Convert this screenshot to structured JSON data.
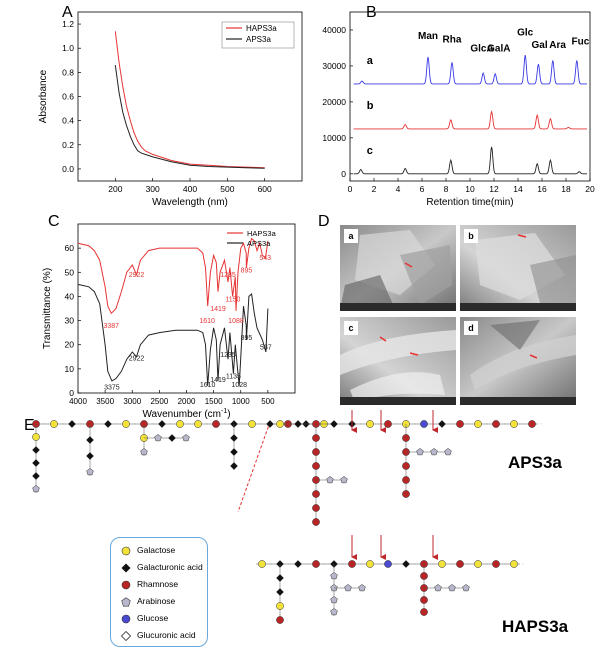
{
  "figure": {
    "panel_labels": [
      "A",
      "B",
      "C",
      "D",
      "E"
    ]
  },
  "chart_data": [
    {
      "id": "A",
      "type": "line",
      "xlabel": "Wavelength (nm)",
      "ylabel": "Absorbance",
      "xlim": [
        100,
        700
      ],
      "ylim": [
        -0.1,
        1.3
      ],
      "xticks": [
        "200",
        "300",
        "400",
        "500",
        "600"
      ],
      "yticks": [
        "0.0",
        "0.2",
        "0.4",
        "0.6",
        "0.8",
        "1.0",
        "1.2"
      ],
      "legend": [
        "HAPS3a",
        "APS3a"
      ],
      "series": [
        {
          "name": "HAPS3a",
          "color": "#e63333",
          "x": [
            200,
            210,
            220,
            230,
            240,
            250,
            260,
            270,
            280,
            300,
            350,
            400,
            450,
            500,
            550,
            600
          ],
          "y": [
            1.14,
            0.88,
            0.68,
            0.52,
            0.4,
            0.3,
            0.23,
            0.18,
            0.15,
            0.12,
            0.07,
            0.04,
            0.03,
            0.02,
            0.015,
            0.01
          ]
        },
        {
          "name": "APS3a",
          "color": "#222222",
          "x": [
            200,
            210,
            220,
            230,
            240,
            250,
            260,
            270,
            280,
            300,
            350,
            400,
            450,
            500,
            550,
            600
          ],
          "y": [
            0.86,
            0.63,
            0.47,
            0.36,
            0.27,
            0.2,
            0.15,
            0.13,
            0.12,
            0.1,
            0.06,
            0.03,
            0.02,
            0.015,
            0.01,
            0.005
          ]
        }
      ]
    },
    {
      "id": "B",
      "type": "line",
      "xlabel": "Retention time(min)",
      "xlim": [
        0,
        20
      ],
      "ylim": [
        -2000,
        45000
      ],
      "xticks": [
        "0",
        "2",
        "4",
        "6",
        "8",
        "10",
        "12",
        "14",
        "16",
        "18",
        "20"
      ],
      "yticks": [
        "0",
        "10000",
        "20000",
        "30000",
        "40000"
      ],
      "trace_labels": [
        "a",
        "b",
        "c"
      ],
      "peak_labels": [
        {
          "text": "Man",
          "x": 6.5,
          "y": 37500
        },
        {
          "text": "Rha",
          "x": 8.5,
          "y": 36500
        },
        {
          "text": "GlcA",
          "x": 11,
          "y": 34000
        },
        {
          "text": "GalA",
          "x": 12.4,
          "y": 34000
        },
        {
          "text": "Glc",
          "x": 14.6,
          "y": 38500
        },
        {
          "text": "Gal",
          "x": 15.8,
          "y": 35000
        },
        {
          "text": "Ara",
          "x": 17.3,
          "y": 35000
        },
        {
          "text": "Fuc",
          "x": 19.2,
          "y": 36000
        }
      ],
      "series": [
        {
          "name": "a",
          "color": "#3a3ae6",
          "baseline": 25000,
          "peaks": [
            [
              1,
              800
            ],
            [
              6.5,
              7500
            ],
            [
              8.5,
              6000
            ],
            [
              11.1,
              3000
            ],
            [
              12.1,
              2800
            ],
            [
              14.6,
              8000
            ],
            [
              15.7,
              5500
            ],
            [
              16.9,
              6500
            ],
            [
              18.9,
              6500
            ]
          ]
        },
        {
          "name": "b",
          "color": "#e63333",
          "baseline": 12500,
          "peaks": [
            [
              4.6,
              1200
            ],
            [
              8.4,
              2500
            ],
            [
              11.8,
              4800
            ],
            [
              15.6,
              3800
            ],
            [
              16.7,
              2800
            ],
            [
              18.2,
              400
            ]
          ]
        },
        {
          "name": "c",
          "color": "#222222",
          "baseline": 0,
          "peaks": [
            [
              0.9,
              1200
            ],
            [
              4.6,
              1500
            ],
            [
              8.4,
              3800
            ],
            [
              11.8,
              7500
            ],
            [
              15.6,
              2800
            ],
            [
              16.7,
              3800
            ],
            [
              19.1,
              600
            ]
          ]
        }
      ]
    },
    {
      "id": "C",
      "type": "line",
      "xlabel": "Wavenumber (cm",
      "xlabel_sup": "-1",
      "xlabel_end": ")",
      "ylabel": "Transmittance (%)",
      "xlim": [
        4000,
        0
      ],
      "ylim": [
        0,
        70
      ],
      "xticks": [
        "4000",
        "3500",
        "3000",
        "2500",
        "2000",
        "1500",
        "1000",
        "500"
      ],
      "yticks": [
        "0",
        "10",
        "20",
        "30",
        "40",
        "50",
        "60"
      ],
      "legend": [
        "HAPS3a",
        "APS3a"
      ],
      "annotations_red": [
        {
          "text": "3387",
          "x": 3387,
          "y": 27
        },
        {
          "text": "2922",
          "x": 2922,
          "y": 48
        },
        {
          "text": "1610",
          "x": 1620,
          "y": 29
        },
        {
          "text": "1419",
          "x": 1419,
          "y": 34
        },
        {
          "text": "1235",
          "x": 1235,
          "y": 48
        },
        {
          "text": "1150",
          "x": 1145,
          "y": 38
        },
        {
          "text": "1088",
          "x": 1088,
          "y": 29
        },
        {
          "text": "895",
          "x": 895,
          "y": 50
        },
        {
          "text": "543",
          "x": 550,
          "y": 55
        }
      ],
      "annotations_black": [
        {
          "text": "3375",
          "x": 3375,
          "y": 1.5
        },
        {
          "text": "2922",
          "x": 2922,
          "y": 13.5
        },
        {
          "text": "1610",
          "x": 1610,
          "y": 2.5
        },
        {
          "text": "1419",
          "x": 1419,
          "y": 4.5
        },
        {
          "text": "1235",
          "x": 1235,
          "y": 15
        },
        {
          "text": "1135",
          "x": 1135,
          "y": 6
        },
        {
          "text": "1028",
          "x": 1028,
          "y": 2.5
        },
        {
          "text": "895",
          "x": 895,
          "y": 22
        },
        {
          "text": "537",
          "x": 537,
          "y": 18
        }
      ],
      "series": [
        {
          "name": "HAPS3a",
          "color": "#e63333",
          "x": [
            4000,
            3800,
            3700,
            3600,
            3500,
            3450,
            3387,
            3300,
            3200,
            3100,
            3000,
            2922,
            2850,
            2700,
            2500,
            2200,
            2000,
            1800,
            1700,
            1650,
            1610,
            1560,
            1500,
            1450,
            1419,
            1380,
            1300,
            1235,
            1200,
            1150,
            1100,
            1088,
            1050,
            1000,
            950,
            900,
            895,
            850,
            800,
            750,
            700,
            650,
            600,
            543,
            500
          ],
          "y": [
            62,
            61,
            59,
            55,
            44,
            36,
            33,
            35,
            42,
            50,
            53,
            49,
            55,
            59,
            60,
            60,
            60,
            60,
            58,
            52,
            36,
            50,
            57,
            54,
            42,
            50,
            55,
            46,
            52,
            40,
            48,
            34,
            50,
            60,
            62,
            58,
            52,
            60,
            64,
            63,
            59,
            62,
            57,
            56,
            63
          ]
        },
        {
          "name": "APS3a",
          "color": "#222222",
          "x": [
            4000,
            3800,
            3700,
            3600,
            3500,
            3450,
            3375,
            3300,
            3200,
            3100,
            3000,
            2922,
            2850,
            2700,
            2500,
            2200,
            2000,
            1800,
            1700,
            1650,
            1610,
            1560,
            1500,
            1450,
            1419,
            1380,
            1300,
            1235,
            1200,
            1135,
            1100,
            1050,
            1028,
            1000,
            950,
            900,
            895,
            850,
            800,
            750,
            700,
            600,
            537,
            500
          ],
          "y": [
            45,
            44,
            42,
            37,
            20,
            9,
            5,
            6,
            9,
            14,
            17,
            15,
            20,
            24,
            25,
            26,
            26,
            26,
            25,
            20,
            3,
            18,
            27,
            22,
            5,
            20,
            27,
            14,
            25,
            8,
            20,
            8,
            3,
            15,
            36,
            28,
            22,
            40,
            41,
            33,
            27,
            22,
            17,
            35
          ]
        }
      ]
    }
  ],
  "panelD": {
    "sub_labels": [
      "a",
      "b",
      "c",
      "d"
    ]
  },
  "panelE": {
    "top_label": "APS3a",
    "bottom_label": "HAPS3a",
    "legend": [
      {
        "name": "Galactose",
        "shape": "circle",
        "color": "#f2e23a"
      },
      {
        "name": "Galacturonic acid",
        "shape": "diamond",
        "color": "#111111"
      },
      {
        "name": "Rhamnose",
        "shape": "circle",
        "color": "#b82525"
      },
      {
        "name": "Arabinose",
        "shape": "pentagon",
        "color": "#b8b8cc"
      },
      {
        "name": "Glucose",
        "shape": "circle",
        "color": "#4a4ad0"
      },
      {
        "name": "Glucuronic acid",
        "shape": "diamond",
        "color": "#ffffff"
      }
    ]
  }
}
